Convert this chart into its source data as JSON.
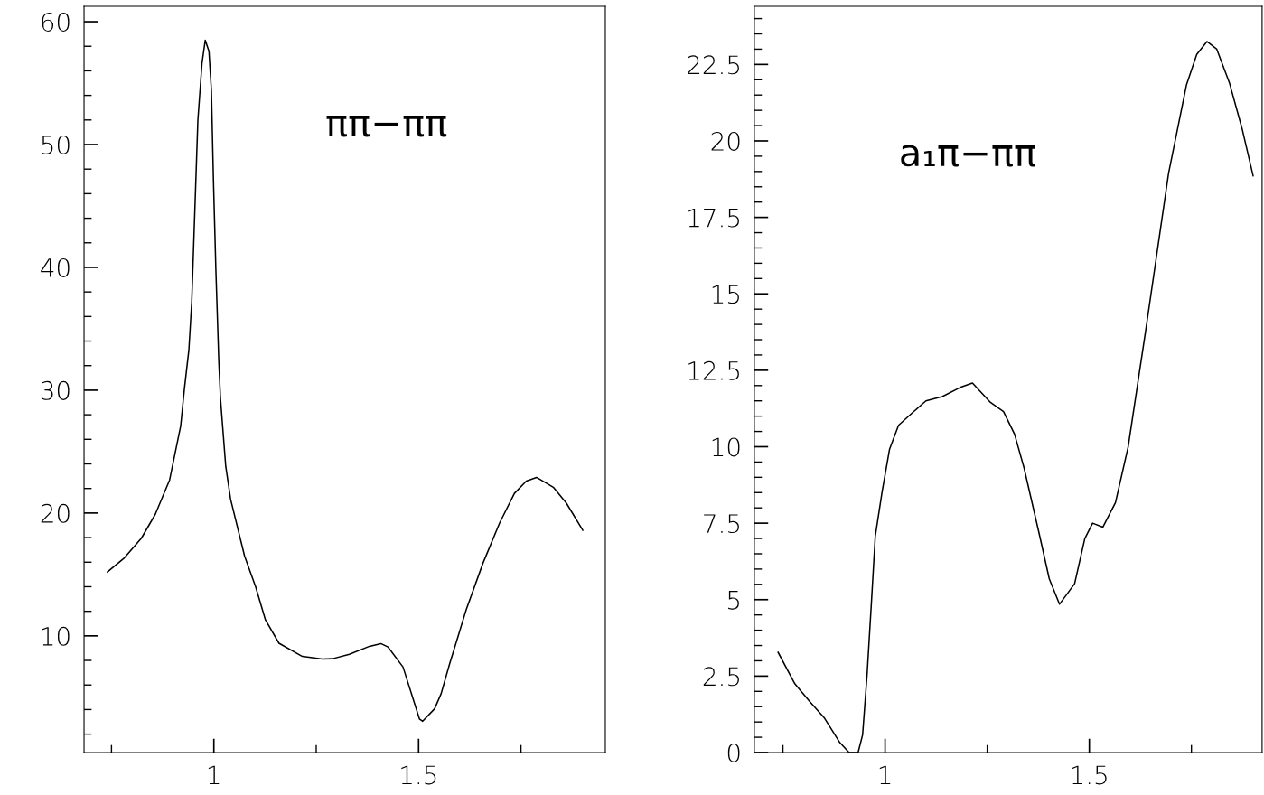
{
  "chart_data": [
    {
      "type": "line",
      "annotations": [
        "ππ−ππ"
      ],
      "xlim": [
        0.683,
        1.956
      ],
      "ylim": [
        0.5,
        61.25
      ],
      "xticks": [
        1,
        1.5
      ],
      "yticks": [
        10,
        20,
        30,
        40,
        50,
        60
      ],
      "x": [
        0.74,
        0.78,
        0.823,
        0.857,
        0.892,
        0.919,
        0.928,
        0.939,
        0.946,
        0.953,
        0.961,
        0.971,
        0.979,
        0.988,
        0.994,
        0.999,
        1.005,
        1.012,
        1.016,
        1.029,
        1.041,
        1.075,
        1.102,
        1.126,
        1.159,
        1.216,
        1.265,
        1.29,
        1.331,
        1.38,
        1.408,
        1.425,
        1.462,
        1.502,
        1.51,
        1.539,
        1.555,
        1.576,
        1.616,
        1.657,
        1.698,
        1.734,
        1.763,
        1.788,
        1.829,
        1.861,
        1.901
      ],
      "series": [
        {
          "color": "#000000",
          "values": [
            15.2,
            16.3,
            17.95,
            19.9,
            22.7,
            27.1,
            30.1,
            33.3,
            37.2,
            44.1,
            52.0,
            56.6,
            58.5,
            57.6,
            54.4,
            47.1,
            39.7,
            32.4,
            29.4,
            23.8,
            21.1,
            16.5,
            14.0,
            11.3,
            9.4,
            8.33,
            8.12,
            8.14,
            8.5,
            9.15,
            9.37,
            9.1,
            7.46,
            3.24,
            3.05,
            4.06,
            5.29,
            7.74,
            12.1,
            15.9,
            19.2,
            21.6,
            22.6,
            22.9,
            22.1,
            20.8,
            18.6
          ]
        }
      ]
    },
    {
      "type": "line",
      "annotations": [
        "a₁π−ππ"
      ],
      "xlim": [
        0.68,
        1.923
      ],
      "ylim": [
        0,
        24.4
      ],
      "xticks": [
        1,
        1.5
      ],
      "yticks": [
        0,
        2.5,
        5,
        7.5,
        10,
        12.5,
        15,
        17.5,
        20,
        22.5
      ],
      "x": [
        0.738,
        0.779,
        0.816,
        0.852,
        0.889,
        0.912,
        0.934,
        0.945,
        0.956,
        0.967,
        0.976,
        0.993,
        1.011,
        1.033,
        1.066,
        1.1,
        1.14,
        1.184,
        1.214,
        1.258,
        1.29,
        1.317,
        1.34,
        1.377,
        1.402,
        1.427,
        1.464,
        1.489,
        1.508,
        1.533,
        1.564,
        1.595,
        1.638,
        1.694,
        1.738,
        1.763,
        1.788,
        1.812,
        1.843,
        1.874,
        1.901
      ],
      "series": [
        {
          "color": "#000000",
          "values": [
            3.28,
            2.25,
            1.66,
            1.12,
            0.33,
            0.0,
            0.0,
            0.58,
            2.55,
            5.0,
            7.07,
            8.55,
            9.92,
            10.7,
            11.1,
            11.5,
            11.64,
            11.94,
            12.08,
            11.45,
            11.15,
            10.41,
            9.32,
            7.17,
            5.68,
            4.85,
            5.52,
            7.0,
            7.5,
            7.37,
            8.17,
            9.99,
            13.8,
            18.94,
            21.84,
            22.83,
            23.25,
            23.0,
            21.9,
            20.4,
            18.86
          ]
        }
      ]
    }
  ]
}
